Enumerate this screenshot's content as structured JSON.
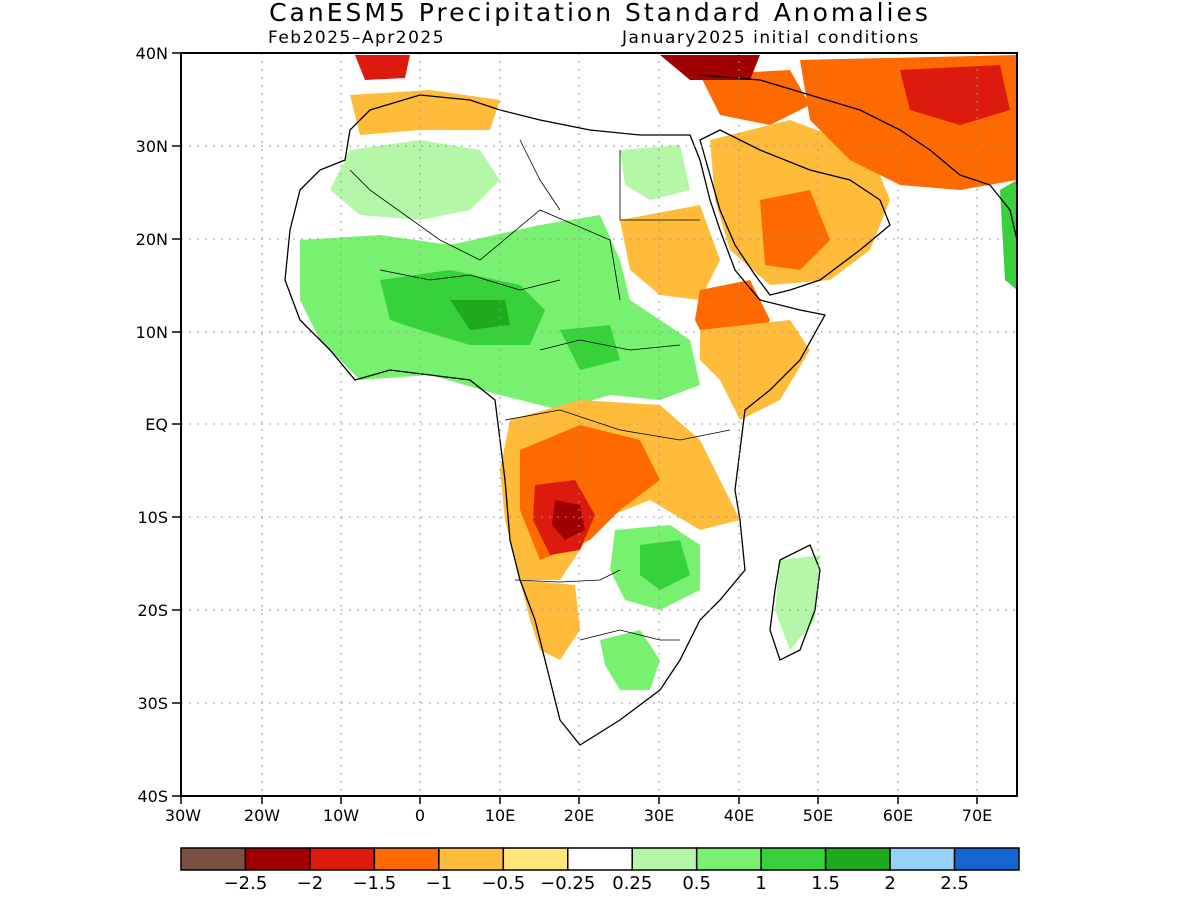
{
  "header": {
    "title": "CanESM5 Precipitation Standard Anomalies",
    "period": "Feb2025–Apr2025",
    "init": "January2025 initial conditions"
  },
  "axes": {
    "lat_labels": [
      "40N",
      "30N",
      "20N",
      "10N",
      "EQ",
      "10S",
      "20S",
      "30S",
      "40S"
    ],
    "lon_labels": [
      "30W",
      "20W",
      "10W",
      "0",
      "10E",
      "20E",
      "30E",
      "40E",
      "50E",
      "60E",
      "70E"
    ]
  },
  "colorbar": {
    "colors": [
      "#7a5040",
      "#a00000",
      "#dd1a0e",
      "#ff6a00",
      "#ffbb3a",
      "#ffe57a",
      "#ffffff",
      "#b4f7a8",
      "#78f070",
      "#37d23a",
      "#1eaa1e",
      "#96d2fa",
      "#1464d2"
    ],
    "labels": [
      "−2.5",
      "−2",
      "−1.5",
      "−1",
      "−0.5",
      "−0.25",
      "0.25",
      "0.5",
      "1",
      "1.5",
      "2",
      "2.5"
    ]
  },
  "regions": [
    {
      "name": "sahel-wet",
      "color": "#78f070",
      "level": "0.5 to 1"
    },
    {
      "name": "sahel-core-wet",
      "color": "#37d23a",
      "level": "1 to 1.5"
    },
    {
      "name": "central-africa-dry",
      "color": "#ff6a00",
      "level": "-1.5 to -1"
    },
    {
      "name": "angola-zambia-dry-core",
      "color": "#dd1a0e",
      "level": "-2 to -1.5"
    },
    {
      "name": "middle-east-dry",
      "color": "#ffbb3a",
      "level": "-1 to -0.5"
    },
    {
      "name": "iran-dry-core",
      "color": "#dd1a0e",
      "level": "-2 to -1.5"
    },
    {
      "name": "southeast-africa-wet",
      "color": "#78f070",
      "level": "0.5 to 1"
    }
  ]
}
